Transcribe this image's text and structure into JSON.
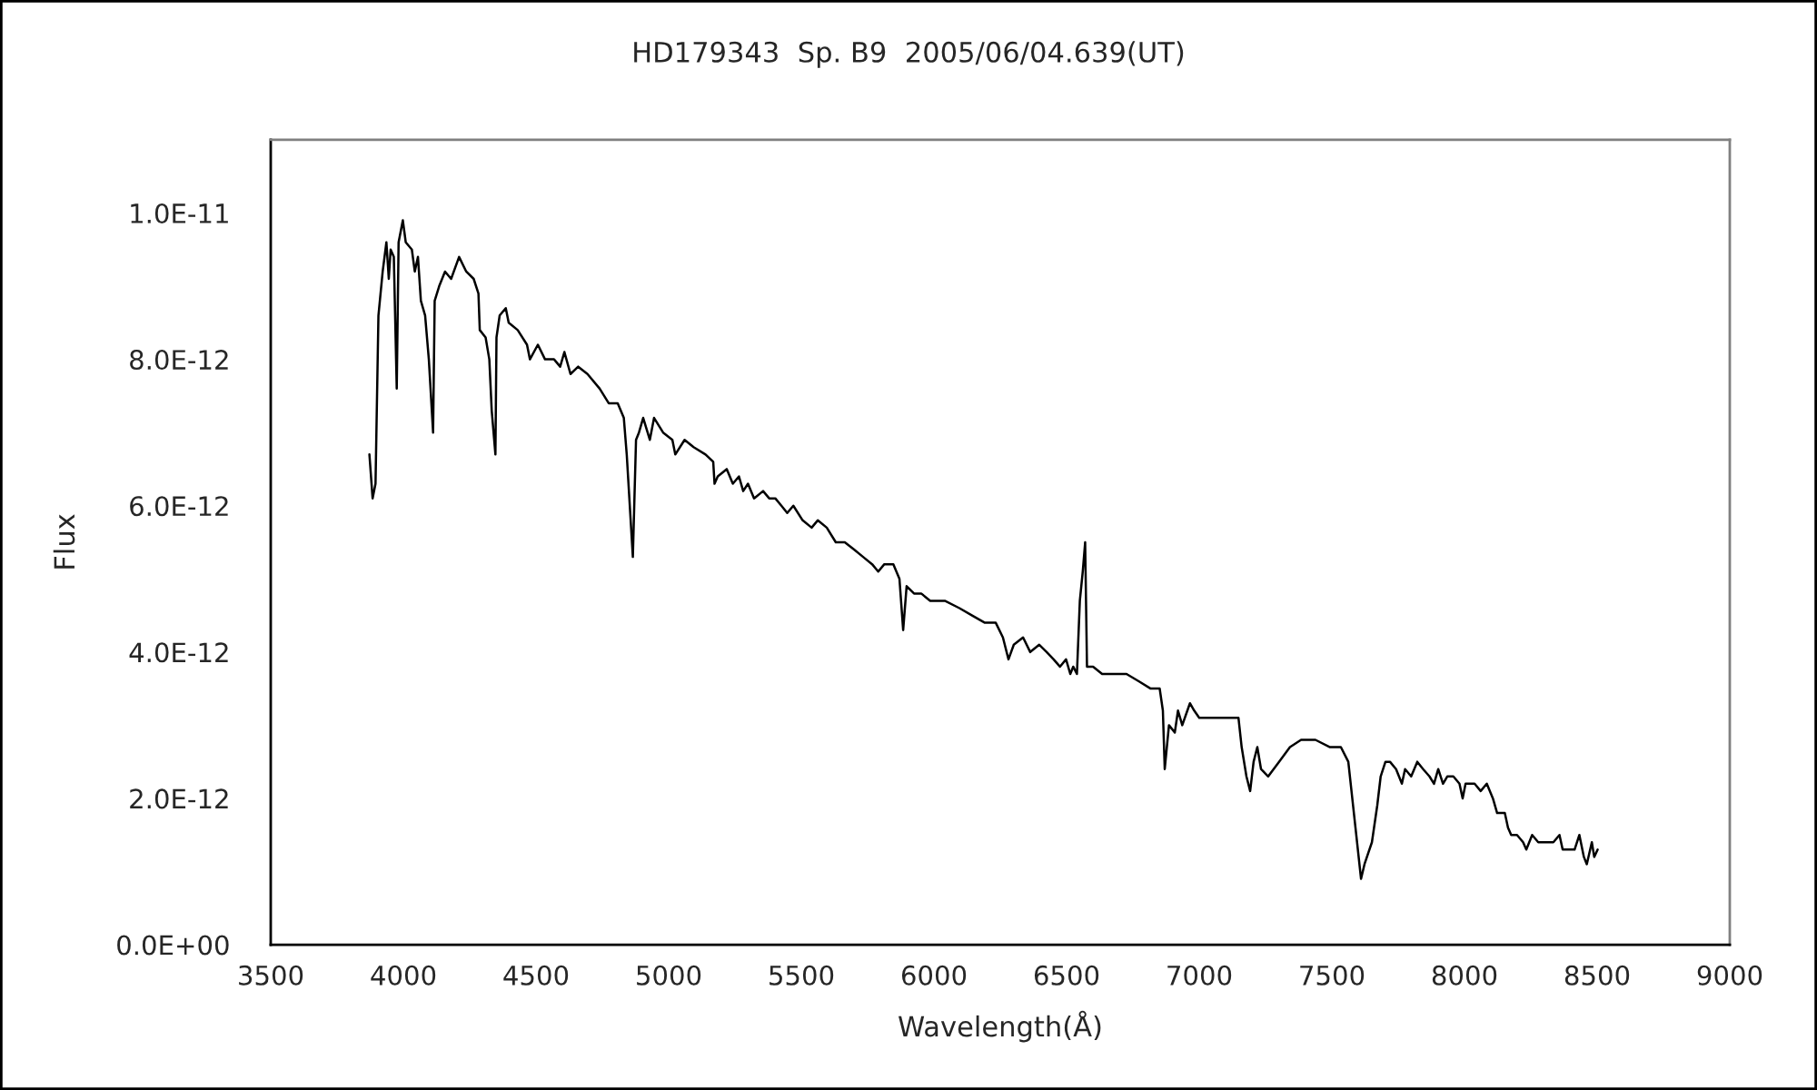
{
  "chart_data": {
    "type": "line",
    "title": "HD179343  Sp. B9  2005/06/04.639(UT)",
    "xlabel": "Wavelength(Å)",
    "ylabel": "Flux",
    "x": [
      3872,
      3884,
      3895,
      3906,
      3922,
      3936,
      3945,
      3952,
      3964,
      3975,
      3982,
      3998,
      4009,
      4032,
      4043,
      4055,
      4066,
      4082,
      4096,
      4112,
      4118,
      4135,
      4157,
      4180,
      4210,
      4237,
      4265,
      4283,
      4288,
      4310,
      4324,
      4333,
      4347,
      4351,
      4363,
      4386,
      4397,
      4431,
      4466,
      4477,
      4507,
      4534,
      4568,
      4591,
      4607,
      4630,
      4659,
      4694,
      4740,
      4774,
      4808,
      4831,
      4842,
      4865,
      4877,
      4888,
      4904,
      4929,
      4945,
      4979,
      5014,
      5025,
      5060,
      5094,
      5139,
      5168,
      5173,
      5185,
      5219,
      5242,
      5265,
      5281,
      5299,
      5322,
      5356,
      5379,
      5402,
      5425,
      5447,
      5470,
      5505,
      5539,
      5562,
      5596,
      5630,
      5664,
      5699,
      5733,
      5767,
      5790,
      5813,
      5847,
      5870,
      5884,
      5897,
      5925,
      5952,
      5986,
      6041,
      6096,
      6144,
      6192,
      6233,
      6260,
      6281,
      6301,
      6336,
      6363,
      6397,
      6425,
      6451,
      6475,
      6498,
      6514,
      6525,
      6539,
      6550,
      6561,
      6570,
      6577,
      6600,
      6634,
      6680,
      6726,
      6772,
      6817,
      6851,
      6863,
      6870,
      6886,
      6908,
      6920,
      6936,
      6965,
      6981,
      7000,
      7034,
      7068,
      7103,
      7137,
      7148,
      7160,
      7178,
      7192,
      7205,
      7219,
      7233,
      7260,
      7301,
      7342,
      7384,
      7438,
      7493,
      7534,
      7562,
      7589,
      7610,
      7623,
      7651,
      7671,
      7684,
      7702,
      7719,
      7742,
      7764,
      7776,
      7799,
      7822,
      7844,
      7868,
      7885,
      7901,
      7919,
      7935,
      7958,
      7981,
      7993,
      8004,
      8038,
      8061,
      8084,
      8107,
      8123,
      8152,
      8164,
      8176,
      8198,
      8221,
      8233,
      8255,
      8278,
      8313,
      8335,
      8358,
      8370,
      8392,
      8415,
      8433,
      8450,
      8461,
      8480,
      8489,
      8502
    ],
    "series": [
      {
        "color": "#000000",
        "values": [
          6.7e-12,
          6.1e-12,
          6.3e-12,
          8.6e-12,
          9.2e-12,
          9.6e-12,
          9.1e-12,
          9.5e-12,
          9.4e-12,
          7.6e-12,
          9.6e-12,
          9.9e-12,
          9.6e-12,
          9.5e-12,
          9.2e-12,
          9.4e-12,
          8.8e-12,
          8.6e-12,
          8e-12,
          7e-12,
          8.8e-12,
          9e-12,
          9.2e-12,
          9.1e-12,
          9.4e-12,
          9.2e-12,
          9.1e-12,
          8.9e-12,
          8.4e-12,
          8.3e-12,
          8e-12,
          7.3e-12,
          6.7e-12,
          8.3e-12,
          8.6e-12,
          8.7e-12,
          8.5e-12,
          8.4e-12,
          8.2e-12,
          8e-12,
          8.2e-12,
          8e-12,
          8e-12,
          7.9e-12,
          8.1e-12,
          7.8e-12,
          7.9e-12,
          7.8e-12,
          7.6e-12,
          7.4e-12,
          7.4e-12,
          7.2e-12,
          6.7e-12,
          5.3e-12,
          6.9e-12,
          7e-12,
          7.2e-12,
          6.9e-12,
          7.2e-12,
          7e-12,
          6.9e-12,
          6.7e-12,
          6.9e-12,
          6.8e-12,
          6.7e-12,
          6.6e-12,
          6.3e-12,
          6.4e-12,
          6.5e-12,
          6.3e-12,
          6.4e-12,
          6.2e-12,
          6.3e-12,
          6.1e-12,
          6.2e-12,
          6.1e-12,
          6.1e-12,
          6e-12,
          5.9e-12,
          6e-12,
          5.8e-12,
          5.7e-12,
          5.8e-12,
          5.7e-12,
          5.5e-12,
          5.5e-12,
          5.4e-12,
          5.3e-12,
          5.2e-12,
          5.1e-12,
          5.2e-12,
          5.2e-12,
          5e-12,
          4.3e-12,
          4.9e-12,
          4.8e-12,
          4.8e-12,
          4.7e-12,
          4.7e-12,
          4.6e-12,
          4.5e-12,
          4.4e-12,
          4.4e-12,
          4.2e-12,
          3.9e-12,
          4.1e-12,
          4.2e-12,
          4e-12,
          4.1e-12,
          4e-12,
          3.9e-12,
          3.8e-12,
          3.9e-12,
          3.7e-12,
          3.8e-12,
          3.7e-12,
          4.7e-12,
          5.1e-12,
          5.5e-12,
          3.8e-12,
          3.8e-12,
          3.7e-12,
          3.7e-12,
          3.7e-12,
          3.6e-12,
          3.5e-12,
          3.5e-12,
          3.2e-12,
          2.4e-12,
          3e-12,
          2.9e-12,
          3.2e-12,
          3e-12,
          3.3e-12,
          3.2e-12,
          3.1e-12,
          3.1e-12,
          3.1e-12,
          3.1e-12,
          3.1e-12,
          3.1e-12,
          2.7e-12,
          2.3e-12,
          2.1e-12,
          2.5e-12,
          2.7e-12,
          2.4e-12,
          2.3e-12,
          2.5e-12,
          2.7e-12,
          2.8e-12,
          2.8e-12,
          2.7e-12,
          2.7e-12,
          2.5e-12,
          1.6e-12,
          9e-13,
          1.1e-12,
          1.4e-12,
          1.9e-12,
          2.3e-12,
          2.5e-12,
          2.5e-12,
          2.4e-12,
          2.2e-12,
          2.4e-12,
          2.3e-12,
          2.5e-12,
          2.4e-12,
          2.3e-12,
          2.2e-12,
          2.4e-12,
          2.2e-12,
          2.3e-12,
          2.3e-12,
          2.2e-12,
          2e-12,
          2.2e-12,
          2.2e-12,
          2.1e-12,
          2.2e-12,
          2e-12,
          1.8e-12,
          1.8e-12,
          1.6e-12,
          1.5e-12,
          1.5e-12,
          1.4e-12,
          1.3e-12,
          1.5e-12,
          1.4e-12,
          1.4e-12,
          1.4e-12,
          1.5e-12,
          1.3e-12,
          1.3e-12,
          1.3e-12,
          1.5e-12,
          1.2e-12,
          1.1e-12,
          1.4e-12,
          1.2e-12,
          1.3e-12
        ]
      }
    ],
    "xlim": [
      3500,
      9000
    ],
    "xticks": [
      3500,
      4000,
      4500,
      5000,
      5500,
      6000,
      6500,
      7000,
      7500,
      8000,
      8500,
      9000
    ],
    "ylim": [
      0,
      1.1e-11
    ],
    "yticks": [
      {
        "value": 0,
        "label": "0.0E+00"
      },
      {
        "value": 2e-12,
        "label": "2.0E-12"
      },
      {
        "value": 4e-12,
        "label": "4.0E-12"
      },
      {
        "value": 6e-12,
        "label": "6.0E-12"
      },
      {
        "value": 8e-12,
        "label": "8.0E-12"
      },
      {
        "value": 1e-11,
        "label": "1.0E-11"
      }
    ],
    "grid": false,
    "marker": "none",
    "line_style": "solid"
  }
}
